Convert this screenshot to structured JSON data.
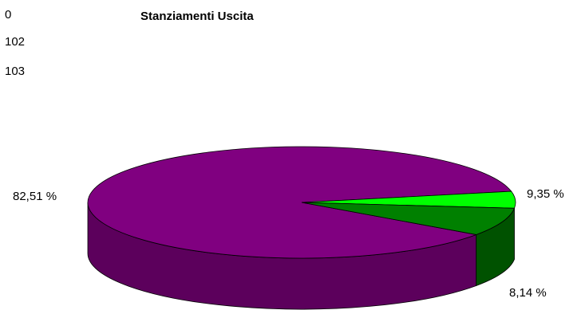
{
  "chart_data": {
    "type": "pie",
    "title": "Stanziamenti Uscita",
    "legend_labels": [
      "0",
      "102",
      "103"
    ],
    "slices": [
      {
        "label": "82,51 %",
        "value": 82.51,
        "color": "#800080",
        "side_color": "#5C005C"
      },
      {
        "label": "9,35 %",
        "value": 9.35,
        "color": "#00FF00",
        "side_color": "#00B400"
      },
      {
        "label": "8,14 %",
        "value": 8.14,
        "color": "#008000",
        "side_color": "#005200"
      }
    ],
    "style": "3d"
  }
}
